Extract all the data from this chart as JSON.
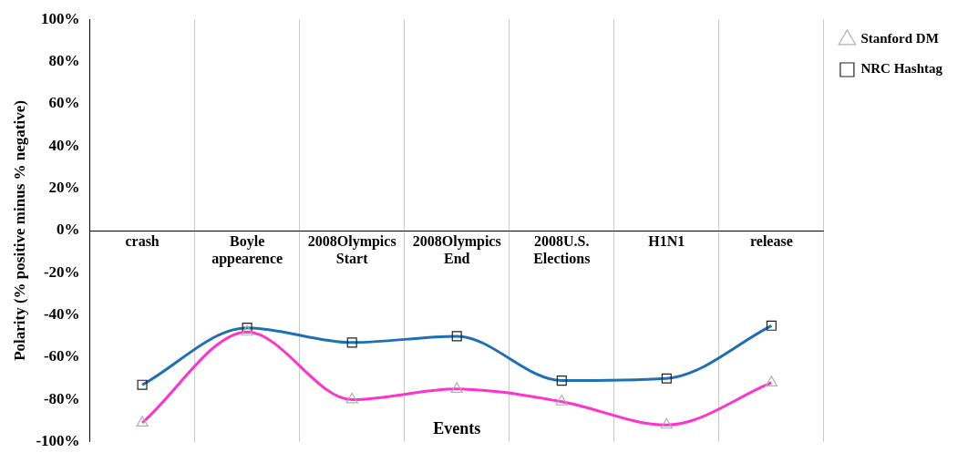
{
  "chart_data": {
    "type": "line",
    "xlabel": "Events",
    "ylabel": "Polarity (% positive minus % negative)",
    "categories": [
      "crash",
      "Boyle appearence",
      "2008Olympics Start",
      "2008Olympics End",
      "2008U.S. Elections",
      "H1N1",
      "release"
    ],
    "series": [
      {
        "name": "Stanford DM",
        "color": "#ff33cc",
        "marker": "triangle",
        "values": [
          -91,
          -48,
          -80,
          -75,
          -81,
          -92,
          -72
        ]
      },
      {
        "name": "NRC Hashtag",
        "color": "#1f6fb4",
        "marker": "square",
        "values": [
          -73,
          -46,
          -53,
          -50,
          -71,
          -70,
          -45
        ]
      }
    ],
    "ylim": [
      -100,
      100
    ],
    "yticks": [
      {
        "value": -100,
        "label": "-100%"
      },
      {
        "value": -80,
        "label": "-80%"
      },
      {
        "value": -60,
        "label": "-60%"
      },
      {
        "value": -40,
        "label": "-40%"
      },
      {
        "value": -20,
        "label": "-20%"
      },
      {
        "value": 0,
        "label": "0%"
      },
      {
        "value": 20,
        "label": "20%"
      },
      {
        "value": 40,
        "label": "40%"
      },
      {
        "value": 60,
        "label": "60%"
      },
      {
        "value": 80,
        "label": "80%"
      },
      {
        "value": 100,
        "label": "100%"
      }
    ],
    "grid": "x",
    "legend": "top right"
  }
}
